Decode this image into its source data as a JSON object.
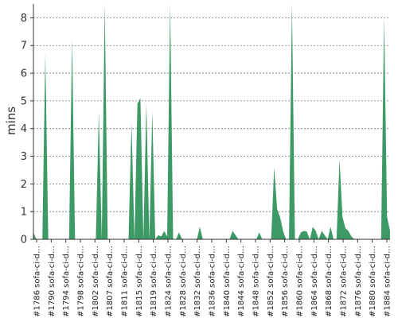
{
  "chart_data": {
    "type": "area",
    "ylabel": "mins",
    "xlabel": "",
    "ylim": [
      0,
      8.5
    ],
    "y_ticks": [
      0,
      1,
      2,
      3,
      4,
      5,
      6,
      7,
      8
    ],
    "grid": true,
    "colors": {
      "area": "#3d9a66",
      "grid": "#777777",
      "axis": "#333333"
    },
    "x_tick_labels": [
      "#1786 sofa-ci-d…",
      "#1790 sofa-ci-d…",
      "#1794 sofa-ci-d…",
      "#1798 sofa-ci-d…",
      "#1802 sofa-ci-d…",
      "#1807 sofa-ci-d…",
      "#1811 sofa-ci-d…",
      "#1815 sofa-ci-d…",
      "#1819 sofa-ci-d…",
      "#1824 sofa-ci-d…",
      "#1828 sofa-ci-d…",
      "#1832 sofa-ci-d…",
      "#1836 sofa-ci-d…",
      "#1840 sofa-ci-d…",
      "#1844 sofa-ci-d…",
      "#1848 sofa-ci-d…",
      "#1852 sofa-ci-d…",
      "#1856 sofa-ci-d…",
      "#1860 sofa-ci-d…",
      "#1864 sofa-ci-d…",
      "#1868 sofa-ci-d…",
      "#1872 sofa-ci-d…",
      "#1876 sofa-ci-d…",
      "#1880 sofa-ci-d…",
      "#1884 sofa-ci-d…"
    ],
    "series": [
      {
        "values": [
          0.25,
          0,
          0,
          0,
          6.7,
          0,
          0,
          0,
          0,
          0,
          0,
          0,
          0,
          7.2,
          0,
          0,
          0,
          0,
          0,
          0,
          0,
          0,
          4.6,
          0,
          8.9,
          0,
          0,
          0,
          0,
          0,
          0,
          0,
          0,
          4.2,
          0,
          4.9,
          5.1,
          0,
          4.9,
          0,
          4.6,
          0,
          0.15,
          0.1,
          0.3,
          0.1,
          8.9,
          0,
          0,
          0.25,
          0,
          0,
          0,
          0,
          0,
          0,
          0.45,
          0,
          0,
          0,
          0,
          0,
          0,
          0,
          0,
          0,
          0,
          0.3,
          0.15,
          0,
          0,
          0,
          0,
          0,
          0,
          0,
          0.25,
          0,
          0,
          0,
          0,
          2.6,
          1.1,
          0.8,
          0.3,
          0,
          0,
          8.9,
          0,
          0,
          0.25,
          0.3,
          0.28,
          0,
          0.45,
          0.3,
          0,
          0.3,
          0.15,
          0,
          0.45,
          0,
          0,
          2.9,
          0.8,
          0.4,
          0.3,
          0.1,
          0,
          0,
          0,
          0,
          0,
          0,
          0,
          0,
          0,
          0,
          8.0,
          0.8,
          0.3
        ]
      }
    ]
  }
}
